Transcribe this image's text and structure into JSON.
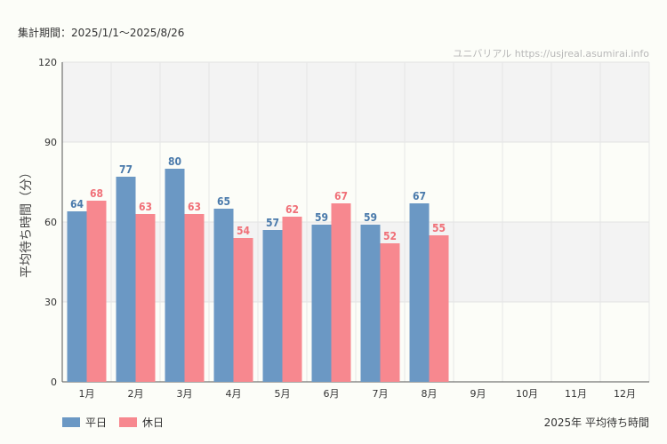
{
  "header": {
    "period": "集計期間：2025/1/1〜2025/8/26",
    "watermark": "ユニバリアル https://usjreal.asumirai.info"
  },
  "caption": "2025年 平均待ち時間",
  "colors": {
    "weekday": "#6b98c4",
    "holiday": "#f7888f",
    "weekday_label": "#4a7aab",
    "holiday_label": "#f07078"
  },
  "chart_data": {
    "type": "bar",
    "title": "",
    "xlabel": "",
    "ylabel": "平均待ち時間（分）",
    "ylim": [
      0,
      120
    ],
    "yticks": [
      0,
      30,
      60,
      90,
      120
    ],
    "categories": [
      "1月",
      "2月",
      "3月",
      "4月",
      "5月",
      "6月",
      "7月",
      "8月",
      "9月",
      "10月",
      "11月",
      "12月"
    ],
    "series": [
      {
        "name": "平日",
        "values": [
          64,
          77,
          80,
          65,
          57,
          59,
          59,
          67,
          null,
          null,
          null,
          null
        ]
      },
      {
        "name": "休日",
        "values": [
          68,
          63,
          63,
          54,
          62,
          67,
          52,
          55,
          null,
          null,
          null,
          null
        ]
      }
    ],
    "grid": true,
    "legend": "bottom-left"
  }
}
